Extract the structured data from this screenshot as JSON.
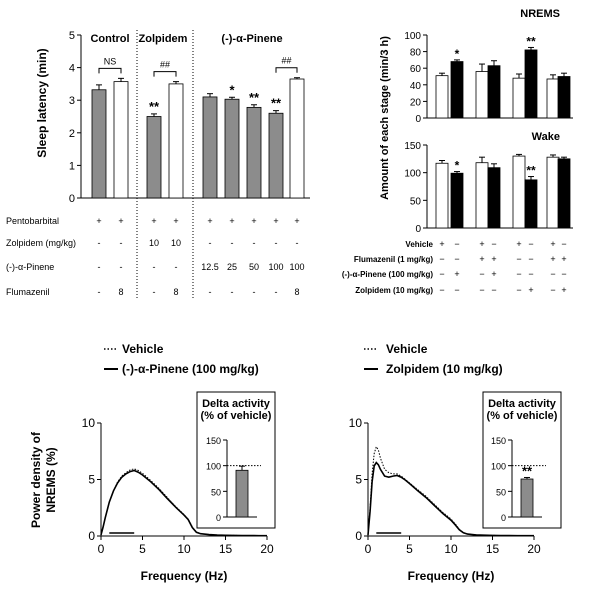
{
  "colors": {
    "gray": "#8c8c8c",
    "black": "#000000",
    "white": "#ffffff"
  },
  "chart_data": [
    {
      "id": "latency",
      "type": "bar",
      "ylabel": "Sleep latency (min)",
      "ylim": [
        0,
        5
      ],
      "yticks": [
        "0",
        "1",
        "2",
        "3",
        "4",
        "5"
      ],
      "group_labels": [
        "Control",
        "Zolpidem",
        "(-)-α-Pinene"
      ],
      "values": [
        3.32,
        3.57,
        2.5,
        3.5,
        3.1,
        3.03,
        2.78,
        2.6,
        3.65
      ],
      "errors": [
        0.15,
        0.1,
        0.08,
        0.07,
        0.1,
        0.06,
        0.08,
        0.08,
        0.04
      ],
      "colors": [
        "gray",
        "white",
        "gray",
        "white",
        "gray",
        "gray",
        "gray",
        "gray",
        "white"
      ],
      "stars": [
        "",
        "",
        "**",
        "",
        "",
        "*",
        "**",
        "**",
        ""
      ],
      "comparisons": [
        {
          "from": 0,
          "to": 1,
          "label": "NS"
        },
        {
          "from": 2,
          "to": 3,
          "label": "##"
        },
        {
          "from": 7,
          "to": 8,
          "label": "##"
        }
      ],
      "treatment_rows": [
        {
          "label": "Pentobarbital",
          "values": [
            "+",
            "+",
            "+",
            "+",
            "+",
            "+",
            "+",
            "+",
            "+"
          ]
        },
        {
          "label": "Zolpidem (mg/kg)",
          "values": [
            "-",
            "-",
            "10",
            "10",
            "-",
            "-",
            "-",
            "-",
            "-"
          ]
        },
        {
          "label": "(-)-α-Pinene",
          "values": [
            "-",
            "-",
            "-",
            "-",
            "12.5",
            "25",
            "50",
            "100",
            "100"
          ]
        },
        {
          "label": "Flumazenil",
          "values": [
            "-",
            "8",
            "-",
            "8",
            "-",
            "-",
            "-",
            "-",
            "8"
          ]
        }
      ]
    },
    {
      "id": "stages",
      "type": "bar",
      "ylabel": "Amount of each stage (min/3 h)",
      "panels": [
        {
          "title": "NREMS",
          "ylim": [
            0,
            100
          ],
          "yticks": [
            "0",
            "20",
            "40",
            "60",
            "80",
            "100"
          ],
          "values": [
            51,
            68,
            56,
            63,
            48,
            82,
            47,
            50
          ],
          "errors": [
            3,
            2,
            9,
            6,
            5,
            3,
            5,
            4
          ],
          "stars": [
            "",
            "*",
            "",
            "",
            "",
            "**",
            "",
            ""
          ]
        },
        {
          "title": "Wake",
          "ylim": [
            0,
            150
          ],
          "yticks": [
            "0",
            "50",
            "100",
            "150"
          ],
          "values": [
            117,
            99,
            118,
            109,
            130,
            87,
            128,
            125
          ],
          "errors": [
            5,
            3,
            10,
            7,
            3,
            6,
            4,
            3
          ],
          "stars": [
            "",
            "*",
            "",
            "",
            "",
            "**",
            "",
            ""
          ]
        }
      ],
      "colors": [
        "white",
        "black",
        "white",
        "black",
        "white",
        "black",
        "white",
        "black"
      ],
      "treatment_rows": [
        {
          "label": "Vehicle",
          "values": [
            "+",
            "−",
            "+",
            "−",
            "+",
            "−",
            "+",
            "−"
          ]
        },
        {
          "label": "Flumazenil (1 mg/kg)",
          "values": [
            "−",
            "−",
            "+",
            "+",
            "−",
            "−",
            "+",
            "+"
          ]
        },
        {
          "label": "(-)-α-Pinene (100 mg/kg)",
          "values": [
            "−",
            "+",
            "−",
            "+",
            "−",
            "−",
            "−",
            "−"
          ]
        },
        {
          "label": "Zolpidem (10 mg/kg)",
          "values": [
            "−",
            "−",
            "−",
            "−",
            "−",
            "+",
            "−",
            "+"
          ]
        }
      ]
    },
    {
      "id": "power_pinene",
      "type": "line",
      "xlabel": "Frequency (Hz)",
      "ylabel": "Power density of NREMS (%)",
      "xlim": [
        0,
        20
      ],
      "ylim": [
        0,
        10
      ],
      "xticks": [
        "0",
        "5",
        "10",
        "15",
        "20"
      ],
      "yticks": [
        "0",
        "5",
        "10"
      ],
      "legend": [
        "Vehicle",
        "(-)-α-Pinene (100 mg/kg)"
      ],
      "x": [
        0,
        0.25,
        0.5,
        1,
        1.5,
        2,
        2.5,
        3,
        3.5,
        4,
        4.5,
        5,
        6,
        7,
        8,
        9,
        10,
        10.5,
        11,
        11.5,
        12,
        13,
        14,
        15,
        16,
        17,
        18,
        19,
        20
      ],
      "series": [
        {
          "name": "Vehicle",
          "style": "dotted",
          "values": [
            0.1,
            0.8,
            1.6,
            3.0,
            4.0,
            4.8,
            5.3,
            5.6,
            5.85,
            5.95,
            5.8,
            5.55,
            4.9,
            4.2,
            3.4,
            2.6,
            1.9,
            1.5,
            0.8,
            0.35,
            0.2,
            0.12,
            0.08,
            0.06,
            0.05,
            0.04,
            0.04,
            0.03,
            0.03
          ]
        },
        {
          "name": "(-)-α-Pinene (100 mg/kg)",
          "style": "solid",
          "values": [
            0.1,
            0.8,
            1.6,
            3.0,
            4.0,
            4.7,
            5.2,
            5.5,
            5.7,
            5.8,
            5.65,
            5.4,
            4.8,
            4.1,
            3.3,
            2.55,
            1.85,
            1.45,
            0.75,
            0.33,
            0.2,
            0.12,
            0.08,
            0.06,
            0.05,
            0.04,
            0.04,
            0.03,
            0.03
          ]
        }
      ],
      "delta_band": [
        1,
        4
      ],
      "inset": {
        "title": "Delta activity (% of vehicle)",
        "ylim": [
          0,
          150
        ],
        "yticks": [
          "0",
          "50",
          "100",
          "150"
        ],
        "value": 91,
        "error": 8,
        "reference": 100,
        "star": ""
      }
    },
    {
      "id": "power_zolpidem",
      "type": "line",
      "xlabel": "Frequency (Hz)",
      "xlim": [
        0,
        20
      ],
      "ylim": [
        0,
        10
      ],
      "xticks": [
        "0",
        "5",
        "10",
        "15",
        "20"
      ],
      "yticks": [
        "0",
        "5",
        "10"
      ],
      "legend": [
        "Vehicle",
        "Zolpidem (10 mg/kg)"
      ],
      "x": [
        0,
        0.25,
        0.5,
        0.75,
        1,
        1.25,
        1.5,
        2,
        2.5,
        3,
        3.5,
        4,
        4.5,
        5,
        6,
        7,
        8,
        9,
        10,
        10.5,
        11,
        11.5,
        12,
        13,
        14,
        15,
        16,
        17,
        18,
        19,
        20
      ],
      "series": [
        {
          "name": "Vehicle",
          "style": "dotted",
          "values": [
            0.1,
            2.5,
            5.5,
            7.3,
            7.9,
            7.6,
            6.9,
            5.9,
            5.6,
            5.5,
            5.5,
            5.3,
            5.0,
            4.7,
            4.1,
            3.5,
            2.8,
            2.1,
            1.5,
            1.1,
            0.6,
            0.3,
            0.18,
            0.1,
            0.07,
            0.05,
            0.04,
            0.04,
            0.03,
            0.03,
            0.03
          ]
        },
        {
          "name": "Zolpidem (10 mg/kg)",
          "style": "solid",
          "values": [
            0.1,
            2.2,
            4.8,
            6.2,
            6.5,
            6.3,
            5.9,
            5.3,
            5.2,
            5.3,
            5.35,
            5.2,
            4.95,
            4.65,
            4.0,
            3.4,
            2.7,
            2.0,
            1.4,
            1.0,
            0.55,
            0.28,
            0.17,
            0.1,
            0.07,
            0.05,
            0.04,
            0.04,
            0.03,
            0.03,
            0.03
          ]
        }
      ],
      "delta_band": [
        1,
        4
      ],
      "inset": {
        "title": "Delta activity (% of vehicle)",
        "ylim": [
          0,
          150
        ],
        "yticks": [
          "0",
          "50",
          "100",
          "150"
        ],
        "value": 74,
        "error": 3,
        "reference": 100,
        "star": "**"
      }
    }
  ]
}
